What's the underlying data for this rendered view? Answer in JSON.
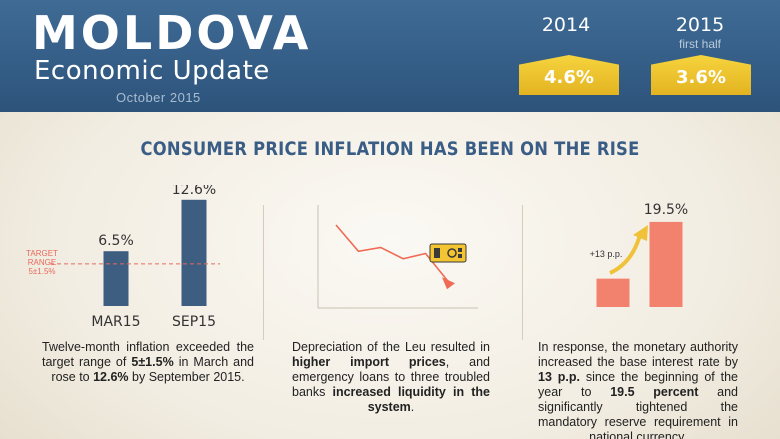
{
  "header": {
    "title": "MOLDOVA",
    "subtitle": "Economic Update",
    "date": "October 2015",
    "kpis": [
      {
        "year": "2014",
        "note": "",
        "value": "4.6%"
      },
      {
        "year": "2015",
        "note": "first half",
        "value": "3.6%"
      }
    ]
  },
  "section_title": "CONSUMER PRICE INFLATION HAS BEEN ON THE RISE",
  "colors": {
    "header_blue": "#345d86",
    "bar_navy": "#3d5d81",
    "bar_salmon": "#f2826e",
    "kpi_gold": "#e9bd2a",
    "target_line": "#e8695c"
  },
  "chart_data": [
    {
      "type": "bar",
      "categories": [
        "MAR15",
        "SEP15"
      ],
      "values": [
        6.5,
        12.6
      ],
      "value_labels": [
        "6.5%",
        "12.6%"
      ],
      "ylim": [
        0,
        14
      ],
      "annotation": {
        "text_lines": [
          "TARGET",
          "RANGE",
          "5±1.5%"
        ],
        "value": 5
      }
    },
    {
      "type": "line",
      "description_icon": "banknote-icon",
      "values": [
        10,
        6.5,
        7,
        5.5,
        6.2,
        2.5
      ],
      "ylim": [
        0,
        12
      ]
    },
    {
      "type": "bar",
      "categories": [
        "",
        ""
      ],
      "values": [
        6.5,
        19.5
      ],
      "value_labels": [
        "",
        "19.5%"
      ],
      "ylim": [
        0,
        22
      ],
      "annotation": {
        "text": "+13 p.p."
      }
    }
  ],
  "captions": {
    "c1": {
      "p1": "Twelve-month inflation exceeded the target range of ",
      "b1": "5±1.5%",
      "p2": " in March and rose to ",
      "b2": "12.6%",
      "p3": " by September 2015."
    },
    "c2": {
      "p1": "Depreciation of the Leu resulted in ",
      "b1": "higher import prices",
      "p2": ", and emergency loans to three troubled banks ",
      "b2": "increased liquidity in the system",
      "p3": "."
    },
    "c3": {
      "p1": "In response, the monetary authority increased the base interest rate by ",
      "b1": "13 p.p.",
      "p2": " since the beginning of the year to ",
      "b2": "19.5 percent",
      "p3": " and significantly tightened the mandatory reserve requirement in national currency."
    }
  }
}
